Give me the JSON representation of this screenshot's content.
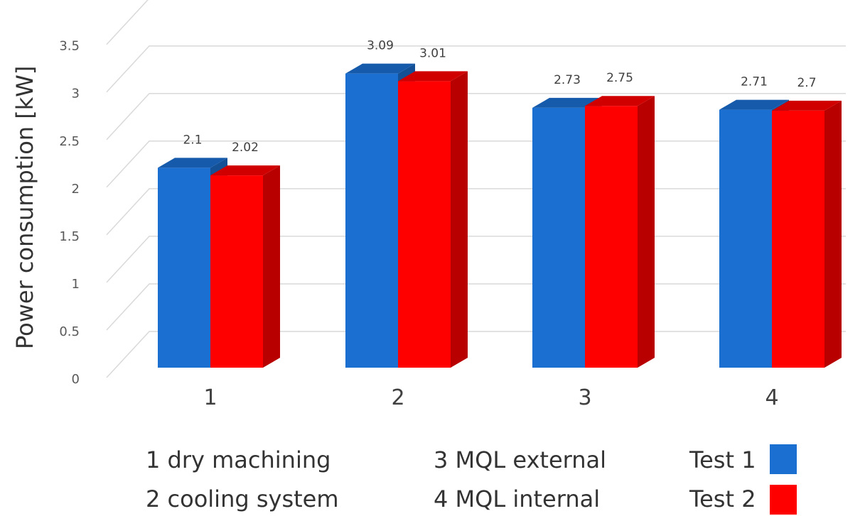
{
  "chart_data": {
    "type": "bar",
    "categories": [
      "1",
      "2",
      "3",
      "4"
    ],
    "series": [
      {
        "name": "Test 1",
        "values": [
          2.1,
          3.09,
          2.73,
          2.71
        ],
        "color": "#1B6FD0"
      },
      {
        "name": "Test 2",
        "values": [
          2.02,
          3.01,
          2.75,
          2.7
        ],
        "color": "#FF0000"
      }
    ],
    "data_labels": [
      [
        "2.1",
        "3.09",
        "2.73",
        "2.71"
      ],
      [
        "2.02",
        "3.01",
        "2.75",
        "2.7"
      ]
    ],
    "ylabel": "Power consumption [kW]",
    "xlabel": "",
    "ylim": [
      0,
      3.5
    ],
    "yticks": [
      "0",
      "0.5",
      "1",
      "1.5",
      "2",
      "2.5",
      "3",
      "3.5"
    ],
    "grid": true,
    "style": "3d-clustered-column"
  },
  "legend": {
    "category_notes": [
      "1 dry machining",
      "2 cooling system",
      "3 MQL external",
      "4 MQL internal"
    ],
    "series_labels": [
      "Test 1",
      "Test 2"
    ]
  }
}
